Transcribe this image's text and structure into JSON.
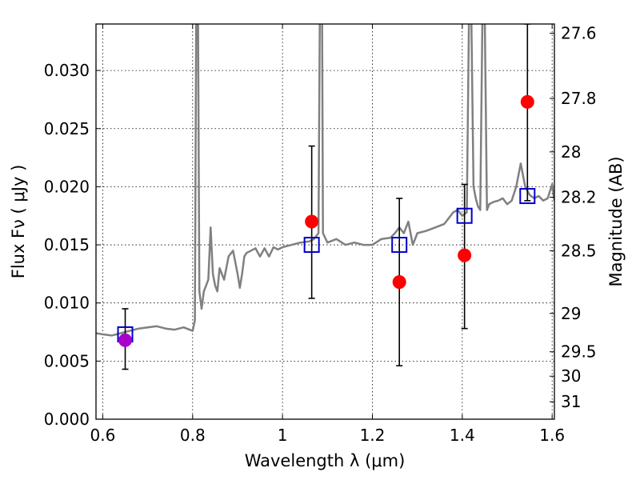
{
  "chart_data": {
    "type": "scatter",
    "title": "",
    "xlabel": "Wavelength  λ (μm)",
    "ylabel": "Flux  Fν  ( μJy )",
    "ylabel_right": "Magnitude (AB)",
    "xlim": [
      0.585,
      1.605
    ],
    "ylim": [
      0.0,
      0.034
    ],
    "grid": true,
    "x_ticks": [
      0.6,
      0.8,
      1.0,
      1.2,
      1.4,
      1.6
    ],
    "x_tick_labels": [
      "0.6",
      "0.8",
      "1",
      "1.2",
      "1.4",
      "1.6"
    ],
    "y_ticks": [
      0.0,
      0.005,
      0.01,
      0.015,
      0.02,
      0.025,
      0.03
    ],
    "y_tick_labels": [
      "0.000",
      "0.005",
      "0.010",
      "0.015",
      "0.020",
      "0.025",
      "0.030"
    ],
    "right_ticks": [
      {
        "label": "27.6",
        "flux": 0.0332
      },
      {
        "label": "27.8",
        "flux": 0.0276
      },
      {
        "label": "28",
        "flux": 0.023
      },
      {
        "label": "28.2",
        "flux": 0.0191
      },
      {
        "label": "28.5",
        "flux": 0.0145
      },
      {
        "label": "29",
        "flux": 0.0091
      },
      {
        "label": "29.5",
        "flux": 0.0058
      },
      {
        "label": "30",
        "flux": 0.0037
      },
      {
        "label": "31",
        "flux": 0.0015
      }
    ],
    "colors": {
      "spectrum": "#808080",
      "observed": "#ff0000",
      "model": "#0000cc",
      "overlap": "#aa00cc"
    },
    "series": [
      {
        "kind": "spectrum",
        "x": [
          0.585,
          0.6,
          0.62,
          0.64,
          0.66,
          0.68,
          0.7,
          0.72,
          0.74,
          0.76,
          0.78,
          0.8,
          0.805,
          0.808,
          0.81,
          0.812,
          0.815,
          0.82,
          0.825,
          0.83,
          0.835,
          0.84,
          0.845,
          0.85,
          0.855,
          0.86,
          0.87,
          0.88,
          0.89,
          0.9,
          0.905,
          0.91,
          0.915,
          0.92,
          0.93,
          0.94,
          0.95,
          0.96,
          0.97,
          0.98,
          0.99,
          1.0,
          1.02,
          1.04,
          1.06,
          1.07,
          1.08,
          1.083,
          1.085,
          1.088,
          1.09,
          1.1,
          1.12,
          1.14,
          1.16,
          1.18,
          1.2,
          1.22,
          1.24,
          1.25,
          1.26,
          1.27,
          1.28,
          1.29,
          1.3,
          1.32,
          1.34,
          1.36,
          1.38,
          1.39,
          1.4,
          1.41,
          1.415,
          1.42,
          1.425,
          1.43,
          1.435,
          1.44,
          1.445,
          1.45,
          1.455,
          1.46,
          1.47,
          1.48,
          1.49,
          1.5,
          1.51,
          1.52,
          1.53,
          1.54,
          1.55,
          1.56,
          1.57,
          1.58,
          1.59,
          1.6,
          1.605
        ],
        "y": [
          0.0074,
          0.0073,
          0.0072,
          0.0074,
          0.0076,
          0.0078,
          0.0079,
          0.008,
          0.0078,
          0.0077,
          0.0079,
          0.0076,
          0.0085,
          0.035,
          0.035,
          0.035,
          0.011,
          0.0095,
          0.011,
          0.0115,
          0.012,
          0.0165,
          0.0125,
          0.0115,
          0.011,
          0.013,
          0.012,
          0.014,
          0.0145,
          0.0125,
          0.0113,
          0.0125,
          0.014,
          0.0143,
          0.0145,
          0.0147,
          0.014,
          0.0147,
          0.014,
          0.0148,
          0.0146,
          0.0148,
          0.015,
          0.0152,
          0.0153,
          0.0155,
          0.016,
          0.035,
          0.035,
          0.035,
          0.016,
          0.0152,
          0.0155,
          0.015,
          0.0152,
          0.015,
          0.015,
          0.0155,
          0.0156,
          0.016,
          0.0165,
          0.016,
          0.017,
          0.015,
          0.016,
          0.0162,
          0.0165,
          0.0168,
          0.0178,
          0.018,
          0.0175,
          0.0178,
          0.035,
          0.035,
          0.02,
          0.019,
          0.0183,
          0.018,
          0.035,
          0.035,
          0.018,
          0.0185,
          0.0187,
          0.0188,
          0.019,
          0.0185,
          0.0188,
          0.02,
          0.022,
          0.02,
          0.0193,
          0.019,
          0.0192,
          0.0188,
          0.019,
          0.0202,
          0.0188
        ]
      },
      {
        "kind": "observed",
        "x": [
          1.065,
          1.26,
          1.405,
          1.545
        ],
        "y": [
          0.017,
          0.0118,
          0.0141,
          0.0273
        ],
        "yerr_low": [
          0.0104,
          0.0046,
          0.0078,
          0.0188
        ],
        "yerr_high": [
          0.0235,
          0.019,
          0.0202,
          0.034
        ]
      },
      {
        "kind": "model",
        "x": [
          0.65,
          1.065,
          1.26,
          1.405,
          1.545
        ],
        "y": [
          0.0073,
          0.015,
          0.015,
          0.0175,
          0.0192
        ]
      },
      {
        "kind": "overlap",
        "x": [
          0.65
        ],
        "y": [
          0.0068
        ],
        "yerr_low": [
          0.0043
        ],
        "yerr_high": [
          0.0095
        ]
      }
    ]
  }
}
